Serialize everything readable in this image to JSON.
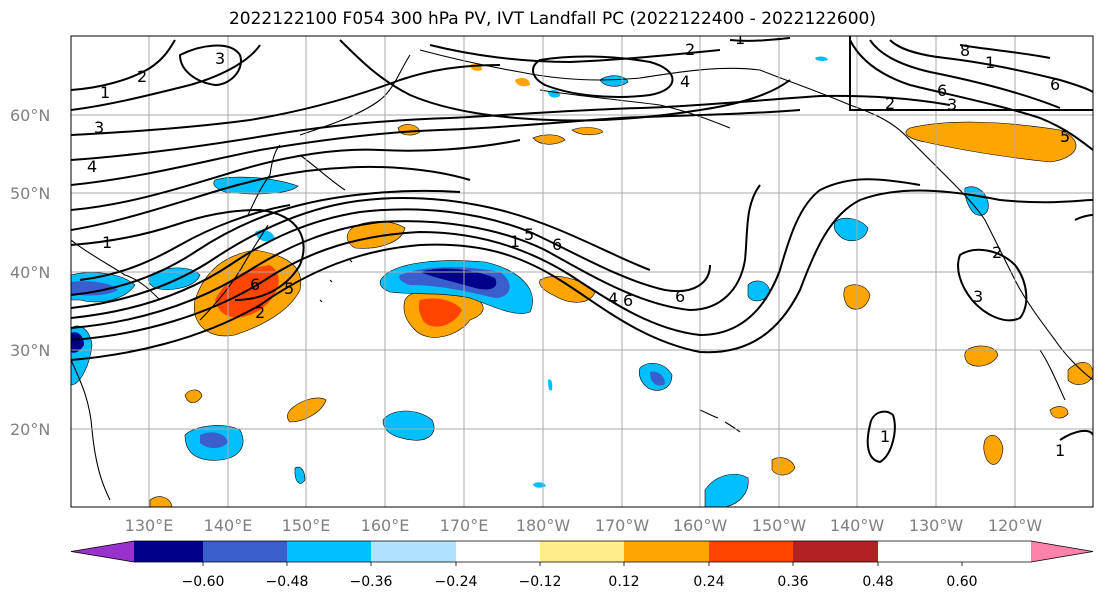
{
  "title": "2022122100 F054 300 hPa PV, IVT Landfall PC (2022122400 - 2022122600)",
  "lat_labels": [
    "60°N",
    "50°N",
    "40°N",
    "30°N",
    "20°N"
  ],
  "lon_labels": [
    "130°E",
    "140°E",
    "150°E",
    "160°E",
    "170°E",
    "180°W",
    "170°W",
    "160°W",
    "150°W",
    "140°W",
    "130°W",
    "120°W"
  ],
  "colorbar": {
    "ticks": [
      "−0.60",
      "−0.48",
      "−0.36",
      "−0.24",
      "−0.12",
      "0.12",
      "0.24",
      "0.36",
      "0.48",
      "0.60"
    ],
    "colors": [
      "#9932cc",
      "#00008b",
      "#3a5fcd",
      "#00bfff",
      "#b0e2ff",
      "#ffffff",
      "#ffec8b",
      "#ffa500",
      "#ff4500",
      "#b22222",
      "#ff82ab"
    ]
  },
  "contour_labels": [
    "1",
    "2",
    "3",
    "4",
    "5",
    "6",
    "8",
    "1",
    "2",
    "3",
    "4",
    "5",
    "6",
    "1",
    "2",
    "3",
    "5",
    "6",
    "2",
    "4",
    "6",
    "1",
    "2",
    "1",
    "1",
    "6",
    "5",
    "1",
    "2",
    "3",
    "4",
    "6",
    "8"
  ]
}
